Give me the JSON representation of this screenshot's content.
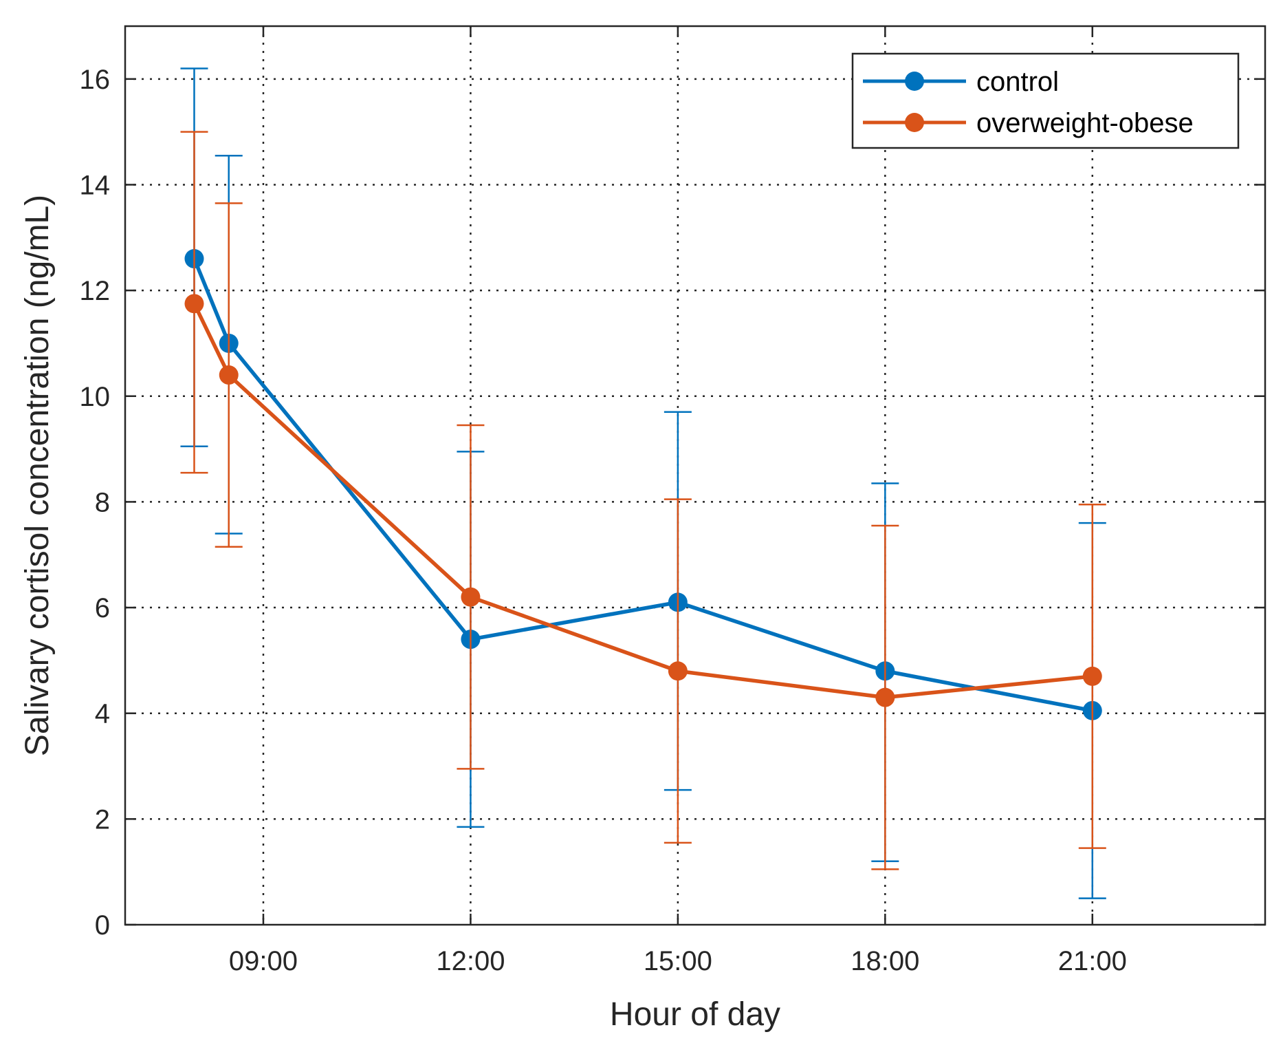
{
  "chart_data": {
    "type": "line",
    "title": "",
    "xlabel": "Hour of day",
    "ylabel": "Salivary cortisol concentration (ng/mL)",
    "xlim": [
      7.0,
      23.5
    ],
    "ylim": [
      0,
      17
    ],
    "grid": true,
    "legend_position": "top-right",
    "x_ticks": [
      {
        "value": 9,
        "label": "09:00"
      },
      {
        "value": 12,
        "label": "12:00"
      },
      {
        "value": 15,
        "label": "15:00"
      },
      {
        "value": 18,
        "label": "18:00"
      },
      {
        "value": 21,
        "label": "21:00"
      }
    ],
    "y_ticks": [
      {
        "value": 0,
        "label": "0"
      },
      {
        "value": 2,
        "label": "2"
      },
      {
        "value": 4,
        "label": "4"
      },
      {
        "value": 6,
        "label": "6"
      },
      {
        "value": 8,
        "label": "8"
      },
      {
        "value": 10,
        "label": "10"
      },
      {
        "value": 12,
        "label": "12"
      },
      {
        "value": 14,
        "label": "14"
      },
      {
        "value": 16,
        "label": "16"
      }
    ],
    "series": [
      {
        "name": "control",
        "color": "#0072BD",
        "x": [
          8.0,
          8.5,
          12,
          15,
          18,
          21
        ],
        "values": [
          12.6,
          11.0,
          5.4,
          6.1,
          4.8,
          4.05
        ],
        "error_low": [
          9.05,
          7.4,
          1.85,
          2.55,
          1.2,
          0.5
        ],
        "error_high": [
          16.2,
          14.55,
          8.95,
          9.7,
          8.35,
          7.6
        ]
      },
      {
        "name": "overweight-obese",
        "color": "#D95319",
        "x": [
          8.0,
          8.5,
          12,
          15,
          18,
          21
        ],
        "values": [
          11.75,
          10.4,
          6.2,
          4.8,
          4.3,
          4.7
        ],
        "error_low": [
          8.55,
          7.15,
          2.95,
          1.55,
          1.05,
          1.45
        ],
        "error_high": [
          15.0,
          13.65,
          9.45,
          8.05,
          7.55,
          7.95
        ]
      }
    ]
  }
}
